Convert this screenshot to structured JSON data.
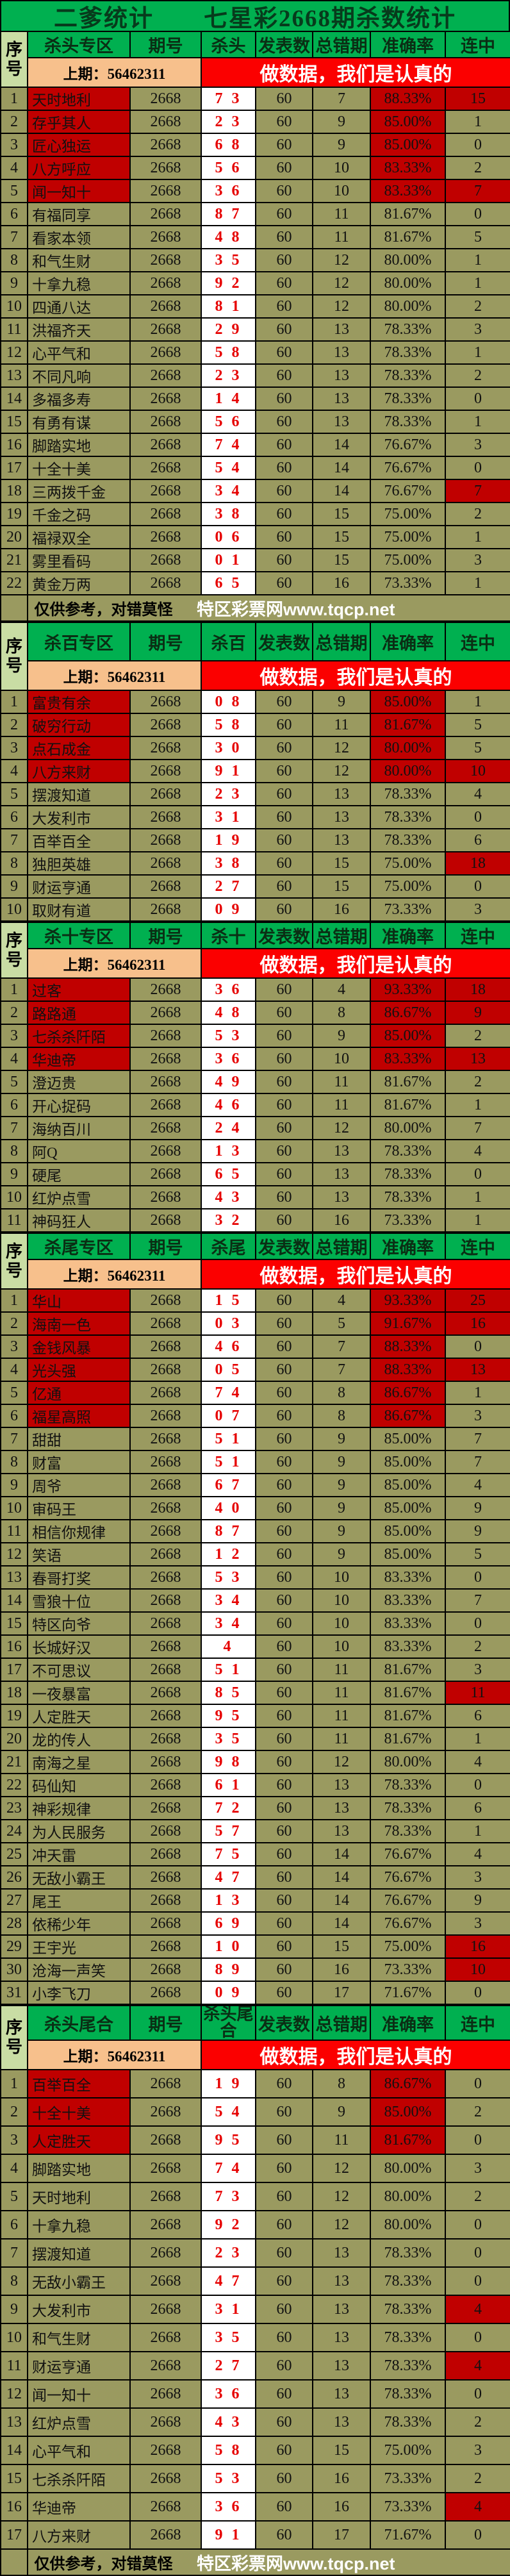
{
  "title": "二爹统计　　七星彩2668期杀数统计",
  "headers": {
    "seq": "序号",
    "issue": "期号",
    "pub": "发表数",
    "err": "总错期",
    "acc": "准确率",
    "streak": "连中"
  },
  "banner": {
    "prev": "上期：56462311",
    "slogan": "做数据，我们是认真的"
  },
  "footer": {
    "note": "仅供参考，对错莫怪",
    "site": "特区彩票网www.tqcp.net"
  },
  "colors": {
    "header_green": "#00b050",
    "seq_green": "#c9dda4",
    "prev_tan": "#f7c08c",
    "banner_red": "#fb0000",
    "highlight_red": "#c00000",
    "cell_olive": "#9a9a60",
    "kill_number_red": "#e60000"
  },
  "sections": [
    {
      "zone": "杀头专区",
      "kill": "杀头",
      "issue": "2668",
      "pub": "60",
      "rows": [
        {
          "no": 1,
          "name": "天时地利",
          "kill": "7 3",
          "err": 7,
          "acc": "88.33%",
          "streak": 15,
          "hl_name": true,
          "hl_acc": true,
          "hl_streak": true
        },
        {
          "no": 2,
          "name": "存乎其人",
          "kill": "2 3",
          "err": 9,
          "acc": "85.00%",
          "streak": 1,
          "hl_name": true,
          "hl_acc": true
        },
        {
          "no": 3,
          "name": "匠心独运",
          "kill": "6 8",
          "err": 9,
          "acc": "85.00%",
          "streak": 0,
          "hl_name": true,
          "hl_acc": true
        },
        {
          "no": 4,
          "name": "八方呼应",
          "kill": "5 6",
          "err": 10,
          "acc": "83.33%",
          "streak": 2,
          "hl_name": true,
          "hl_acc": true
        },
        {
          "no": 5,
          "name": "闻一知十",
          "kill": "3 6",
          "err": 10,
          "acc": "83.33%",
          "streak": 7,
          "hl_name": true,
          "hl_acc": true,
          "hl_streak": true
        },
        {
          "no": 6,
          "name": "有福同享",
          "kill": "8 7",
          "err": 11,
          "acc": "81.67%",
          "streak": 0
        },
        {
          "no": 7,
          "name": "看家本领",
          "kill": "4 8",
          "err": 11,
          "acc": "81.67%",
          "streak": 5
        },
        {
          "no": 8,
          "name": "和气生财",
          "kill": "3 5",
          "err": 12,
          "acc": "80.00%",
          "streak": 1
        },
        {
          "no": 9,
          "name": "十拿九稳",
          "kill": "9 2",
          "err": 12,
          "acc": "80.00%",
          "streak": 1
        },
        {
          "no": 10,
          "name": "四通八达",
          "kill": "8 1",
          "err": 12,
          "acc": "80.00%",
          "streak": 2
        },
        {
          "no": 11,
          "name": "洪福齐天",
          "kill": "2 9",
          "err": 13,
          "acc": "78.33%",
          "streak": 3
        },
        {
          "no": 12,
          "name": "心平气和",
          "kill": "5 8",
          "err": 13,
          "acc": "78.33%",
          "streak": 1
        },
        {
          "no": 13,
          "name": "不同凡响",
          "kill": "2 3",
          "err": 13,
          "acc": "78.33%",
          "streak": 2
        },
        {
          "no": 14,
          "name": "多福多寿",
          "kill": "1 4",
          "err": 13,
          "acc": "78.33%",
          "streak": 0
        },
        {
          "no": 15,
          "name": "有勇有谋",
          "kill": "5 6",
          "err": 13,
          "acc": "78.33%",
          "streak": 1
        },
        {
          "no": 16,
          "name": "脚踏实地",
          "kill": "7 4",
          "err": 14,
          "acc": "76.67%",
          "streak": 3
        },
        {
          "no": 17,
          "name": "十全十美",
          "kill": "5 4",
          "err": 14,
          "acc": "76.67%",
          "streak": 0
        },
        {
          "no": 18,
          "name": "三两拨千金",
          "kill": "3 4",
          "err": 14,
          "acc": "76.67%",
          "streak": 7,
          "hl_streak": true
        },
        {
          "no": 19,
          "name": "千金之码",
          "kill": "3 8",
          "err": 15,
          "acc": "75.00%",
          "streak": 2
        },
        {
          "no": 20,
          "name": "福禄双全",
          "kill": "0 6",
          "err": 15,
          "acc": "75.00%",
          "streak": 1
        },
        {
          "no": 21,
          "name": "雾里看码",
          "kill": "0 1",
          "err": 15,
          "acc": "75.00%",
          "streak": 3
        },
        {
          "no": 22,
          "name": "黄金万两",
          "kill": "6 5",
          "err": 16,
          "acc": "73.33%",
          "streak": 1
        }
      ]
    },
    {
      "zone": "杀百专区",
      "kill": "杀百",
      "issue": "2668",
      "pub": "60",
      "rows": [
        {
          "no": 1,
          "name": "富贵有余",
          "kill": "0 8",
          "err": 9,
          "acc": "85.00%",
          "streak": 1,
          "hl_name": true,
          "hl_acc": true
        },
        {
          "no": 2,
          "name": "破穷行动",
          "kill": "5 8",
          "err": 11,
          "acc": "81.67%",
          "streak": 5,
          "hl_name": true,
          "hl_acc": true
        },
        {
          "no": 3,
          "name": "点石成金",
          "kill": "3 0",
          "err": 12,
          "acc": "80.00%",
          "streak": 5,
          "hl_name": true,
          "hl_acc": true
        },
        {
          "no": 4,
          "name": "八方来财",
          "kill": "9 1",
          "err": 12,
          "acc": "80.00%",
          "streak": 10,
          "hl_name": true,
          "hl_acc": true,
          "hl_streak": true
        },
        {
          "no": 5,
          "name": "摆渡知道",
          "kill": "2 3",
          "err": 13,
          "acc": "78.33%",
          "streak": 4
        },
        {
          "no": 6,
          "name": "大发利市",
          "kill": "3 1",
          "err": 13,
          "acc": "78.33%",
          "streak": 0
        },
        {
          "no": 7,
          "name": "百举百全",
          "kill": "1 9",
          "err": 13,
          "acc": "78.33%",
          "streak": 6
        },
        {
          "no": 8,
          "name": "独胆英雄",
          "kill": "3 8",
          "err": 15,
          "acc": "75.00%",
          "streak": 18,
          "hl_streak": true
        },
        {
          "no": 9,
          "name": "财运亨通",
          "kill": "2 7",
          "err": 15,
          "acc": "75.00%",
          "streak": 0
        },
        {
          "no": 10,
          "name": "取财有道",
          "kill": "0 9",
          "err": 16,
          "acc": "73.33%",
          "streak": 3
        }
      ]
    },
    {
      "zone": "杀十专区",
      "kill": "杀十",
      "issue": "2668",
      "pub": "60",
      "rows": [
        {
          "no": 1,
          "name": "过客",
          "kill": "3 6",
          "err": 4,
          "acc": "93.33%",
          "streak": 18,
          "hl_name": true,
          "hl_acc": true,
          "hl_streak": true
        },
        {
          "no": 2,
          "name": "路路通",
          "kill": "4 8",
          "err": 8,
          "acc": "86.67%",
          "streak": 9,
          "hl_name": true,
          "hl_acc": true,
          "hl_streak": true
        },
        {
          "no": 3,
          "name": "七杀杀阡陌",
          "kill": "5 3",
          "err": 9,
          "acc": "85.00%",
          "streak": 2,
          "hl_name": true,
          "hl_acc": true
        },
        {
          "no": 4,
          "name": "华迪帝",
          "kill": "3 6",
          "err": 10,
          "acc": "83.33%",
          "streak": 13,
          "hl_name": true,
          "hl_acc": true,
          "hl_streak": true
        },
        {
          "no": 5,
          "name": "澄迈贵",
          "kill": "4 9",
          "err": 11,
          "acc": "81.67%",
          "streak": 2
        },
        {
          "no": 6,
          "name": "开心捉码",
          "kill": "4 6",
          "err": 11,
          "acc": "81.67%",
          "streak": 1
        },
        {
          "no": 7,
          "name": "海纳百川",
          "kill": "2 4",
          "err": 12,
          "acc": "80.00%",
          "streak": 7
        },
        {
          "no": 8,
          "name": "阿Q",
          "kill": "1 3",
          "err": 13,
          "acc": "78.33%",
          "streak": 4
        },
        {
          "no": 9,
          "name": "硬尾",
          "kill": "6 5",
          "err": 13,
          "acc": "78.33%",
          "streak": 0
        },
        {
          "no": 10,
          "name": "红炉点雪",
          "kill": "4 3",
          "err": 13,
          "acc": "78.33%",
          "streak": 1
        },
        {
          "no": 11,
          "name": "神码狂人",
          "kill": "3 2",
          "err": 16,
          "acc": "73.33%",
          "streak": 1
        }
      ]
    },
    {
      "zone": "杀尾专区",
      "kill": "杀尾",
      "issue": "2668",
      "pub": "60",
      "rows": [
        {
          "no": 1,
          "name": "华山",
          "kill": "1 5",
          "err": 4,
          "acc": "93.33%",
          "streak": 25,
          "hl_name": true,
          "hl_acc": true,
          "hl_streak": true
        },
        {
          "no": 2,
          "name": "海南一色",
          "kill": "0 3",
          "err": 5,
          "acc": "91.67%",
          "streak": 16,
          "hl_name": true,
          "hl_acc": true,
          "hl_streak": true
        },
        {
          "no": 3,
          "name": "金钱风暴",
          "kill": "4 6",
          "err": 7,
          "acc": "88.33%",
          "streak": 0,
          "hl_name": true,
          "hl_acc": true
        },
        {
          "no": 4,
          "name": "光头强",
          "kill": "0 5",
          "err": 7,
          "acc": "88.33%",
          "streak": 13,
          "hl_name": true,
          "hl_acc": true,
          "hl_streak": true
        },
        {
          "no": 5,
          "name": "亿通",
          "kill": "7 4",
          "err": 8,
          "acc": "86.67%",
          "streak": 1,
          "hl_name": true,
          "hl_acc": true
        },
        {
          "no": 6,
          "name": "福星高照",
          "kill": "0 7",
          "err": 8,
          "acc": "86.67%",
          "streak": 3,
          "hl_name": true,
          "hl_acc": true
        },
        {
          "no": 7,
          "name": "甜甜",
          "kill": "5 1",
          "err": 9,
          "acc": "85.00%",
          "streak": 7
        },
        {
          "no": 8,
          "name": "财富",
          "kill": "5 1",
          "err": 9,
          "acc": "85.00%",
          "streak": 7
        },
        {
          "no": 9,
          "name": "周爷",
          "kill": "6 7",
          "err": 9,
          "acc": "85.00%",
          "streak": 4
        },
        {
          "no": 10,
          "name": "审码王",
          "kill": "4 0",
          "err": 9,
          "acc": "85.00%",
          "streak": 9
        },
        {
          "no": 11,
          "name": "相信你规律",
          "kill": "8 7",
          "err": 9,
          "acc": "85.00%",
          "streak": 9
        },
        {
          "no": 12,
          "name": "笑语",
          "kill": "1 2",
          "err": 9,
          "acc": "85.00%",
          "streak": 5
        },
        {
          "no": 13,
          "name": "春哥打奖",
          "kill": "5 3",
          "err": 10,
          "acc": "83.33%",
          "streak": 0
        },
        {
          "no": 14,
          "name": "雪狼十位",
          "kill": "3 4",
          "err": 10,
          "acc": "83.33%",
          "streak": 7
        },
        {
          "no": 15,
          "name": "特区向爷",
          "kill": "3 4",
          "err": 10,
          "acc": "83.33%",
          "streak": 0
        },
        {
          "no": 16,
          "name": "长城好汉",
          "kill": "4",
          "err": 10,
          "acc": "83.33%",
          "streak": 2
        },
        {
          "no": 17,
          "name": "不可思议",
          "kill": "5 1",
          "err": 11,
          "acc": "81.67%",
          "streak": 3
        },
        {
          "no": 18,
          "name": "一夜暴富",
          "kill": "8 5",
          "err": 11,
          "acc": "81.67%",
          "streak": 11,
          "hl_streak": true
        },
        {
          "no": 19,
          "name": "人定胜天",
          "kill": "9 5",
          "err": 11,
          "acc": "81.67%",
          "streak": 6
        },
        {
          "no": 20,
          "name": "龙的传人",
          "kill": "3 5",
          "err": 11,
          "acc": "81.67%",
          "streak": 1
        },
        {
          "no": 21,
          "name": "南海之星",
          "kill": "9 8",
          "err": 12,
          "acc": "80.00%",
          "streak": 4
        },
        {
          "no": 22,
          "name": "码仙知",
          "kill": "6 1",
          "err": 13,
          "acc": "78.33%",
          "streak": 0
        },
        {
          "no": 23,
          "name": "神彩规律",
          "kill": "7 2",
          "err": 13,
          "acc": "78.33%",
          "streak": 6
        },
        {
          "no": 24,
          "name": "为人民服务",
          "kill": "5 7",
          "err": 13,
          "acc": "78.33%",
          "streak": 1
        },
        {
          "no": 25,
          "name": "冲天雷",
          "kill": "7 5",
          "err": 14,
          "acc": "76.67%",
          "streak": 4
        },
        {
          "no": 26,
          "name": "无敌小霸王",
          "kill": "4 7",
          "err": 14,
          "acc": "76.67%",
          "streak": 3
        },
        {
          "no": 27,
          "name": "尾王",
          "kill": "1 3",
          "err": 14,
          "acc": "76.67%",
          "streak": 9
        },
        {
          "no": 28,
          "name": "依稀少年",
          "kill": "6 9",
          "err": 14,
          "acc": "76.67%",
          "streak": 3
        },
        {
          "no": 29,
          "name": "王宇光",
          "kill": "1 0",
          "err": 15,
          "acc": "75.00%",
          "streak": 16,
          "hl_streak": true
        },
        {
          "no": 30,
          "name": "沧海一声笑",
          "kill": "8 9",
          "err": 16,
          "acc": "73.33%",
          "streak": 10,
          "hl_streak": true
        },
        {
          "no": 31,
          "name": "小李飞刀",
          "kill": "0 9",
          "err": 17,
          "acc": "71.67%",
          "streak": 0
        }
      ]
    },
    {
      "zone": "杀头尾合",
      "kill": "杀头尾合",
      "issue": "2668",
      "pub": "60",
      "rows": [
        {
          "no": 1,
          "name": "百举百全",
          "kill": "1 9",
          "err": 8,
          "acc": "86.67%",
          "streak": 0,
          "hl_name": true,
          "hl_acc": true
        },
        {
          "no": 2,
          "name": "十全十美",
          "kill": "5 4",
          "err": 9,
          "acc": "85.00%",
          "streak": 2,
          "hl_name": true,
          "hl_acc": true
        },
        {
          "no": 3,
          "name": "人定胜天",
          "kill": "9 5",
          "err": 11,
          "acc": "81.67%",
          "streak": 0,
          "hl_name": true,
          "hl_acc": true
        },
        {
          "no": 4,
          "name": "脚踏实地",
          "kill": "7 4",
          "err": 12,
          "acc": "80.00%",
          "streak": 3
        },
        {
          "no": 5,
          "name": "天时地利",
          "kill": "7 3",
          "err": 12,
          "acc": "80.00%",
          "streak": 2
        },
        {
          "no": 6,
          "name": "十拿九稳",
          "kill": "9 2",
          "err": 12,
          "acc": "80.00%",
          "streak": 0
        },
        {
          "no": 7,
          "name": "摆渡知道",
          "kill": "2 3",
          "err": 13,
          "acc": "78.33%",
          "streak": 0
        },
        {
          "no": 8,
          "name": "无敌小霸王",
          "kill": "4 7",
          "err": 13,
          "acc": "78.33%",
          "streak": 0
        },
        {
          "no": 9,
          "name": "大发利市",
          "kill": "3 1",
          "err": 13,
          "acc": "78.33%",
          "streak": 4,
          "hl_streak": true
        },
        {
          "no": 10,
          "name": "和气生财",
          "kill": "3 5",
          "err": 13,
          "acc": "78.33%",
          "streak": 0
        },
        {
          "no": 11,
          "name": "财运亨通",
          "kill": "2 7",
          "err": 13,
          "acc": "78.33%",
          "streak": 4,
          "hl_streak": true
        },
        {
          "no": 12,
          "name": "闻一知十",
          "kill": "3 6",
          "err": 13,
          "acc": "78.33%",
          "streak": 0
        },
        {
          "no": 13,
          "name": "红炉点雪",
          "kill": "4 3",
          "err": 13,
          "acc": "78.33%",
          "streak": 2
        },
        {
          "no": 14,
          "name": "心平气和",
          "kill": "5 8",
          "err": 15,
          "acc": "75.00%",
          "streak": 3
        },
        {
          "no": 15,
          "name": "七杀杀阡陌",
          "kill": "5 3",
          "err": 16,
          "acc": "73.33%",
          "streak": 2
        },
        {
          "no": 16,
          "name": "华迪帝",
          "kill": "3 6",
          "err": 16,
          "acc": "73.33%",
          "streak": 4,
          "hl_streak": true
        },
        {
          "no": 17,
          "name": "八方来财",
          "kill": "9 1",
          "err": 17,
          "acc": "71.67%",
          "streak": 0
        }
      ]
    }
  ]
}
